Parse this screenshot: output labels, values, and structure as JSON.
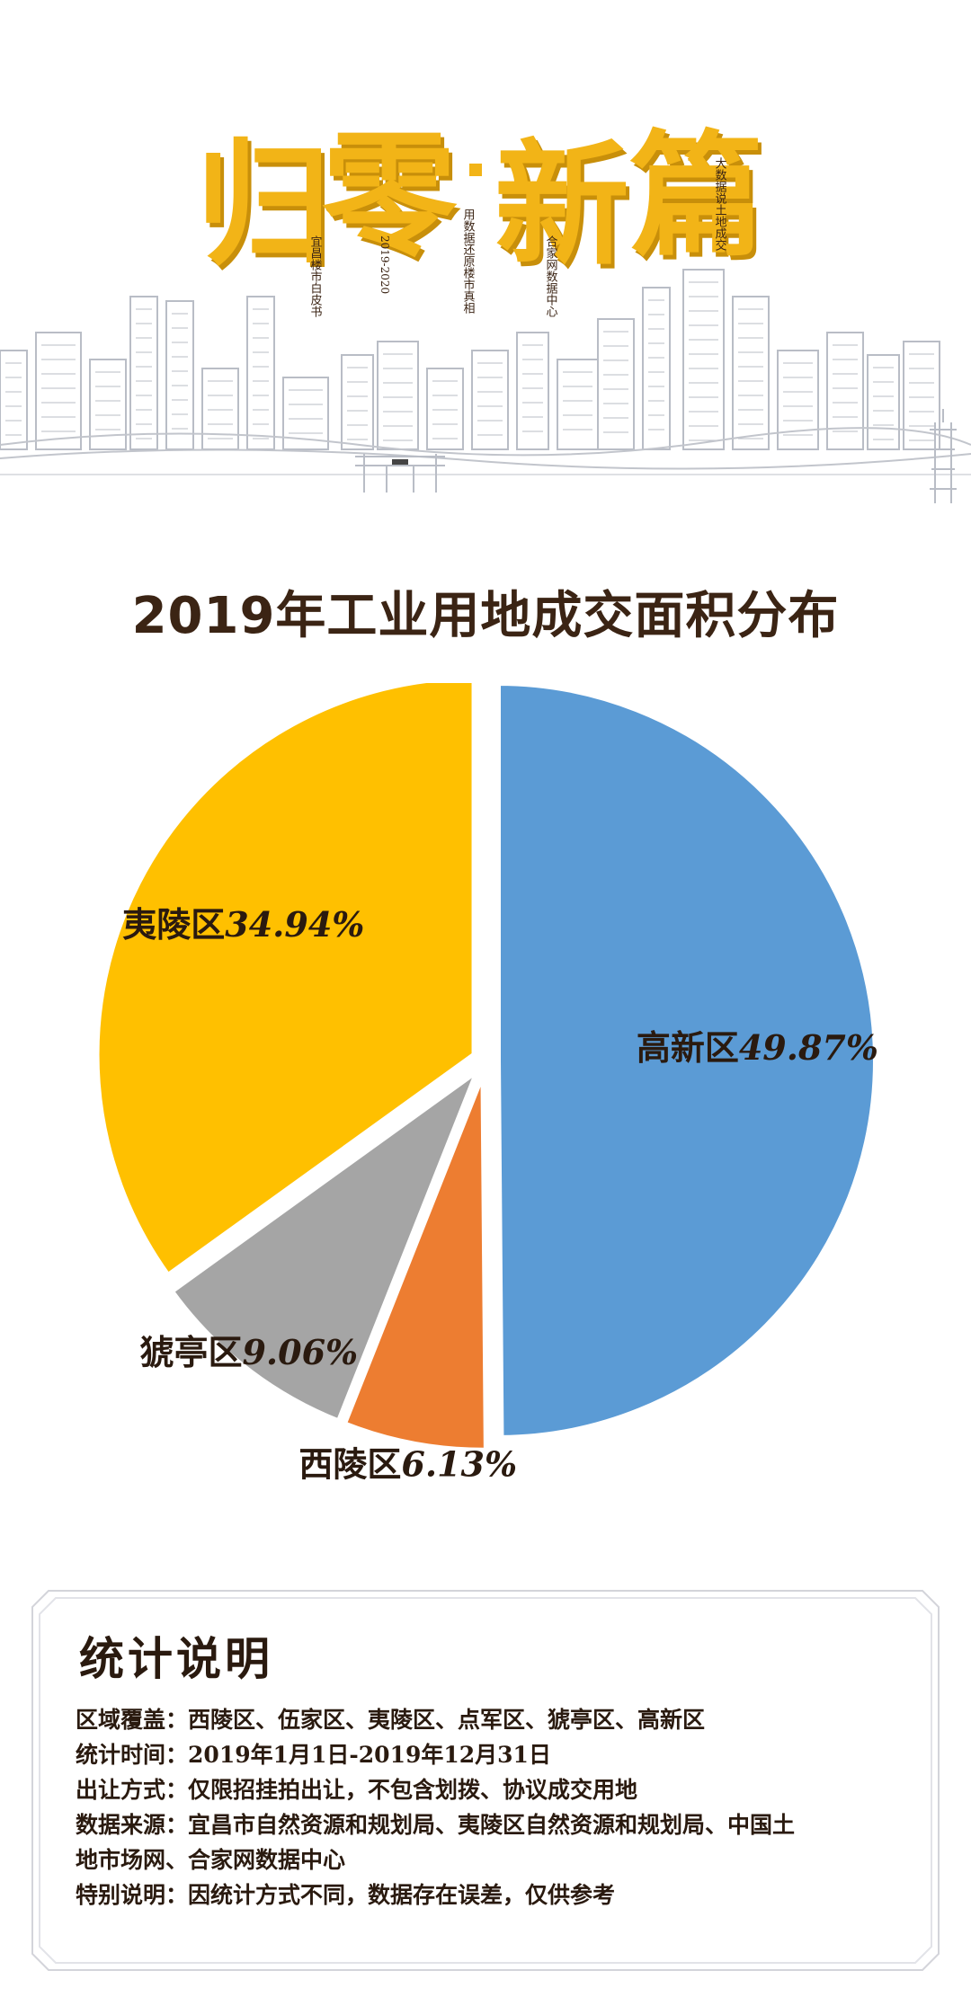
{
  "banner": {
    "logo_text": "归零·新篇",
    "vertical_texts": [
      "宜昌楼市白皮书",
      "2019-2020",
      "用数据还原楼市真相",
      "合家网数据中心",
      "大数据说土地成交"
    ],
    "colors": {
      "logo": "#f2b417",
      "logo_shadow": "#c88f0a",
      "skyline": "#b9bdc6"
    }
  },
  "page_title": "2019年工业用地成交面积分布",
  "chart_data": {
    "type": "pie",
    "title": "2019年工业用地成交面积分布",
    "slices": [
      {
        "name": "高新区",
        "value": 49.87,
        "pct_label": "49.87%",
        "color": "#5b9bd5"
      },
      {
        "name": "西陵区",
        "value": 6.13,
        "pct_label": "6.13%",
        "color": "#ed7d31"
      },
      {
        "name": "猇亭区",
        "value": 9.06,
        "pct_label": "9.06%",
        "color": "#a5a5a5"
      },
      {
        "name": "夷陵区",
        "value": 34.94,
        "pct_label": "34.94%",
        "color": "#ffc000"
      }
    ],
    "start": "12 o'clock",
    "direction": "clockwise",
    "exploded": true
  },
  "notes": {
    "title": "统计说明",
    "lines": [
      {
        "label": "区域覆盖",
        "text": "西陵区、伍家区、夷陵区、点军区、猇亭区、高新区"
      },
      {
        "label": "统计时间",
        "text": "2019年1月1日-2019年12月31日"
      },
      {
        "label": "出让方式",
        "text": "仅限招挂拍出让，不包含划拨、协议成交用地"
      },
      {
        "label": "数据来源",
        "text": "宜昌市自然资源和规划局、夷陵区自然资源和规划局、中国土"
      },
      {
        "label": "",
        "text": "地市场网、合家网数据中心"
      },
      {
        "label": "特别说明",
        "text": "因统计方式不同，数据存在误差，仅供参考"
      }
    ],
    "separator": "："
  }
}
